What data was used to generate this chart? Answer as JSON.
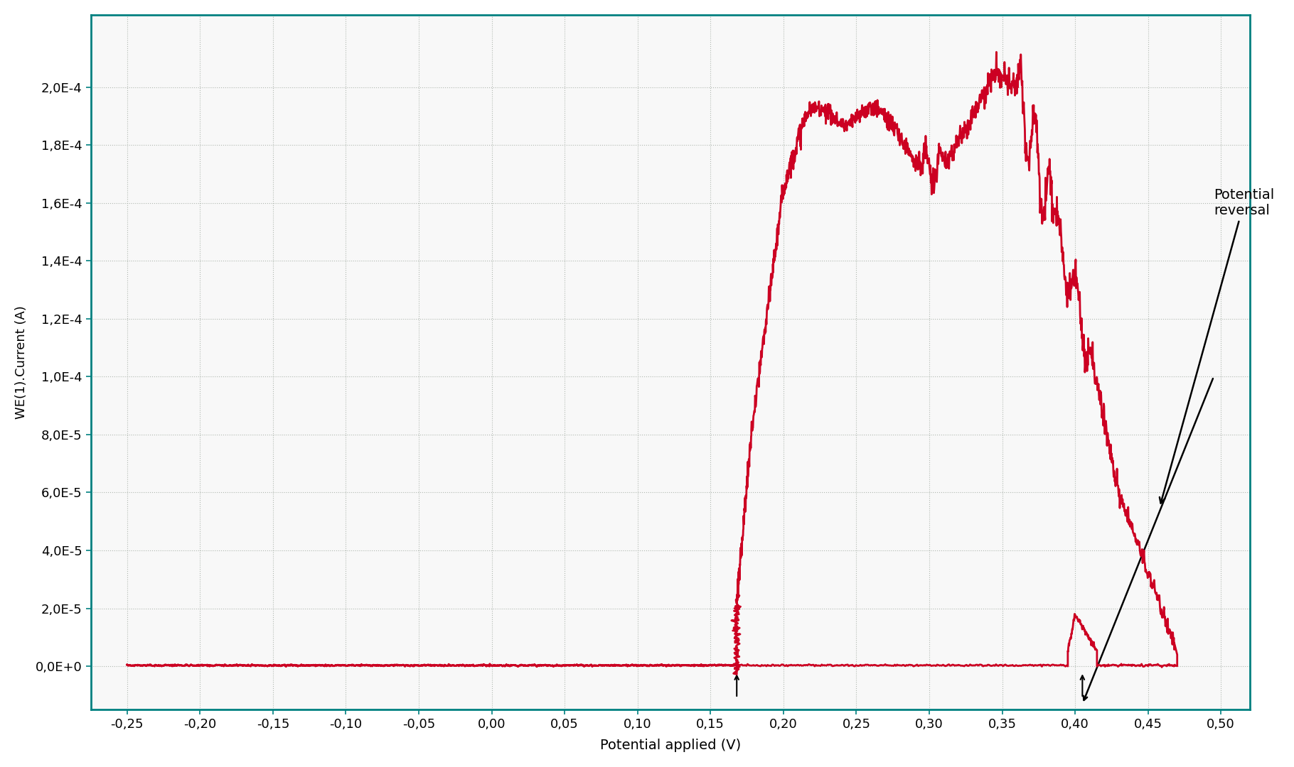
{
  "title": "",
  "xlabel": "Potential applied (V)",
  "ylabel": "WE(1).Current (A)",
  "xlim": [
    -0.275,
    0.52
  ],
  "ylim": [
    -1.5e-05,
    0.000225
  ],
  "xticks": [
    -0.25,
    -0.2,
    -0.15,
    -0.1,
    -0.05,
    0.0,
    0.05,
    0.1,
    0.15,
    0.2,
    0.25,
    0.3,
    0.35,
    0.4,
    0.45,
    0.5
  ],
  "yticks": [
    0.0,
    2e-05,
    4e-05,
    6e-05,
    8e-05,
    0.0001,
    0.00012,
    0.00014,
    0.00016,
    0.00018,
    0.0002
  ],
  "line_color": "#cc0022",
  "grid_color": "#b0b8b0",
  "bg_color": "#f8f8f8",
  "annotation_text": "Potential\nreversal",
  "annotation_fontsize": 14,
  "xlabel_fontsize": 14,
  "ylabel_fontsize": 13,
  "tick_fontsize": 13,
  "spine_color": "#008080",
  "linewidth": 2.0
}
